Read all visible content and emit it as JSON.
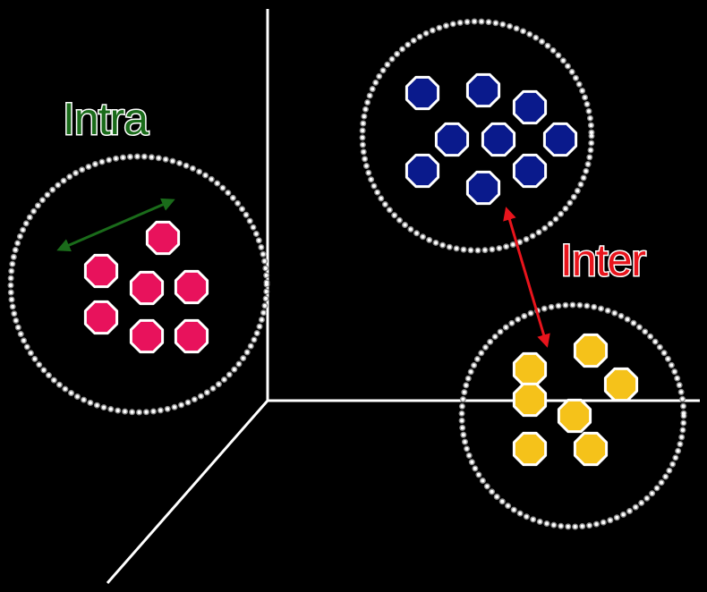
{
  "labels": {
    "intra": "Intra",
    "inter": "Inter"
  },
  "colors": {
    "background": "#000000",
    "axes": "#ffffff",
    "intra": "#1a6b1a",
    "inter": "#e8141c",
    "cluster_pink": "#e8125c",
    "cluster_blue": "#0a1a8c",
    "cluster_yellow": "#f5c21a"
  },
  "clusters": [
    {
      "name": "pink",
      "point_count": 7
    },
    {
      "name": "blue",
      "point_count": 9
    },
    {
      "name": "yellow",
      "point_count": 7
    }
  ]
}
